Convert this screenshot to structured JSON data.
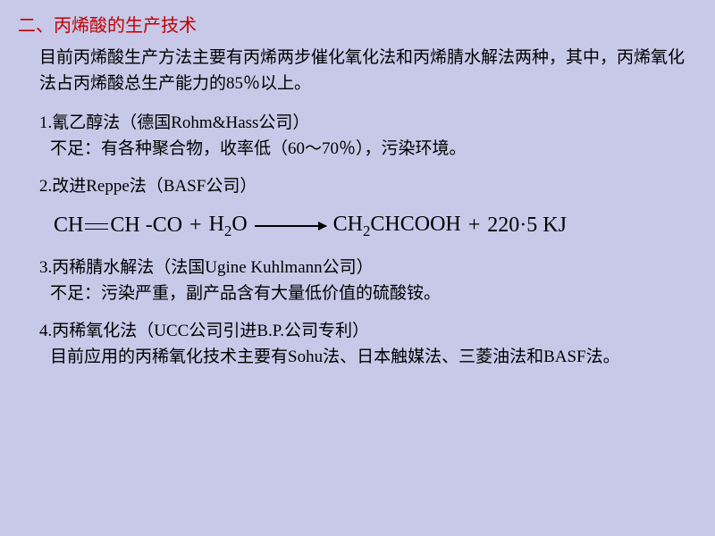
{
  "heading": "二、丙烯酸的生产技术",
  "intro": "目前丙烯酸生产方法主要有丙烯两步催化氧化法和丙烯腈水解法两种，其中，丙烯氧化法占丙烯酸总生产能力的85％以上。",
  "methods": [
    {
      "title": "1.氰乙醇法（德国Rohm&Hass公司）",
      "detail": "不足：有各种聚合物，收率低（60～70％），污染环境。"
    },
    {
      "title": "2.改进Reppe法（BASF公司）",
      "detail": ""
    },
    {
      "title": "3.丙稀腈水解法（法国Ugine  Kuhlmann公司）",
      "detail": "不足：污染严重，副产品含有大量低价值的硫酸铵。"
    },
    {
      "title": "4.丙稀氧化法（UCC公司引进B.P.公司专利）",
      "detail": "目前应用的丙稀氧化技术主要有Sohu法、日本触媒法、三菱油法和BASF法。"
    }
  ],
  "equation": {
    "reactant1_a": "CH",
    "reactant1_b": "CH",
    "reactant1_c": "CO",
    "plus1": "+",
    "water_h": "H",
    "water_sub": "2",
    "water_o": "O",
    "product_a": "CH",
    "product_sub1": "2",
    "product_b": "CHCOOH",
    "plus2": "+",
    "energy": "220·5 KJ"
  },
  "colors": {
    "background": "#c8c8e8",
    "heading": "#c00000",
    "text": "#000000"
  }
}
